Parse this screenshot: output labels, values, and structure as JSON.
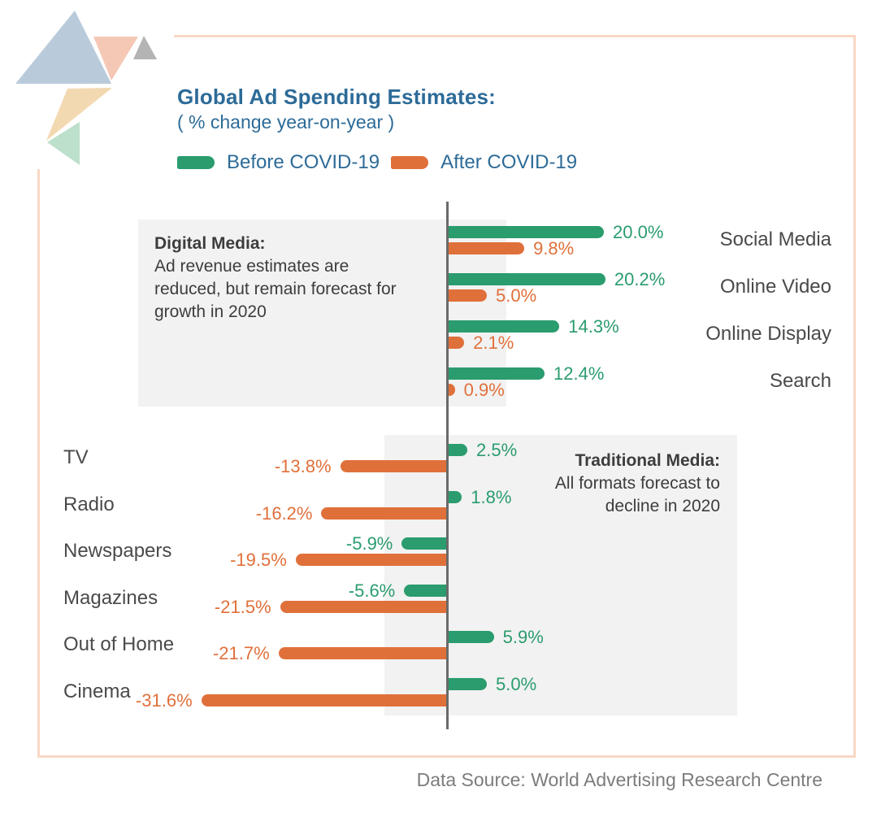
{
  "header": {
    "title": "Global Ad Spending Estimates:",
    "subtitle": "( % change year-on-year )"
  },
  "annotations": {
    "digital": {
      "heading": "Digital Media:",
      "lines": [
        "Ad revenue estimates are",
        "reduced, but remain forecast for",
        "growth in 2020"
      ]
    },
    "traditional": {
      "heading": "Traditional Media:",
      "lines": [
        "All formats forecast to",
        "decline in 2020"
      ]
    }
  },
  "footer": {
    "source": "Data Source: World Advertising Research Centre"
  },
  "colors": {
    "green": "#2a9c6e",
    "orange": "#e0703a",
    "heading_blue": "#2d6b98",
    "panel_gray": "#f2f2f2",
    "axis_gray": "#6a6a6a",
    "text_dark": "#3d3d3d",
    "category_gray": "#4a4a4a",
    "source_gray": "#7c7c7c",
    "frame_peach": "#f9d8c5",
    "logo": {
      "blue": "#b9cbdb",
      "peach": "#f5c8b6",
      "gray": "#b4b4b4",
      "tan": "#f3d9b1",
      "green": "#bce0cb"
    }
  },
  "chart_data": {
    "type": "bar",
    "orientation": "horizontal",
    "title": "Global Ad Spending Estimates:",
    "subtitle": "( % change year-on-year )",
    "unit": "%",
    "legend_position": "top-left",
    "axis": {
      "baseline": 0,
      "xlim": [
        -35,
        25
      ],
      "gridlines": false
    },
    "series": [
      {
        "name": "Before COVID-19",
        "key": "before",
        "color": "#2a9c6e"
      },
      {
        "name": "After COVID-19",
        "key": "after",
        "color": "#e0703a"
      }
    ],
    "sections": [
      {
        "id": "digital",
        "label_side": "right",
        "categories": [
          "Social Media",
          "Online Video",
          "Online Display",
          "Search"
        ],
        "before": [
          20.0,
          20.2,
          14.3,
          12.4
        ],
        "after": [
          9.8,
          5.0,
          2.1,
          0.9
        ]
      },
      {
        "id": "traditional",
        "label_side": "left",
        "categories": [
          "TV",
          "Radio",
          "Newspapers",
          "Magazines",
          "Out of Home",
          "Cinema"
        ],
        "before": [
          2.5,
          1.8,
          -5.9,
          -5.6,
          5.9,
          5.0
        ],
        "after": [
          -13.8,
          -16.2,
          -19.5,
          -21.5,
          -21.7,
          -31.6
        ]
      }
    ]
  }
}
